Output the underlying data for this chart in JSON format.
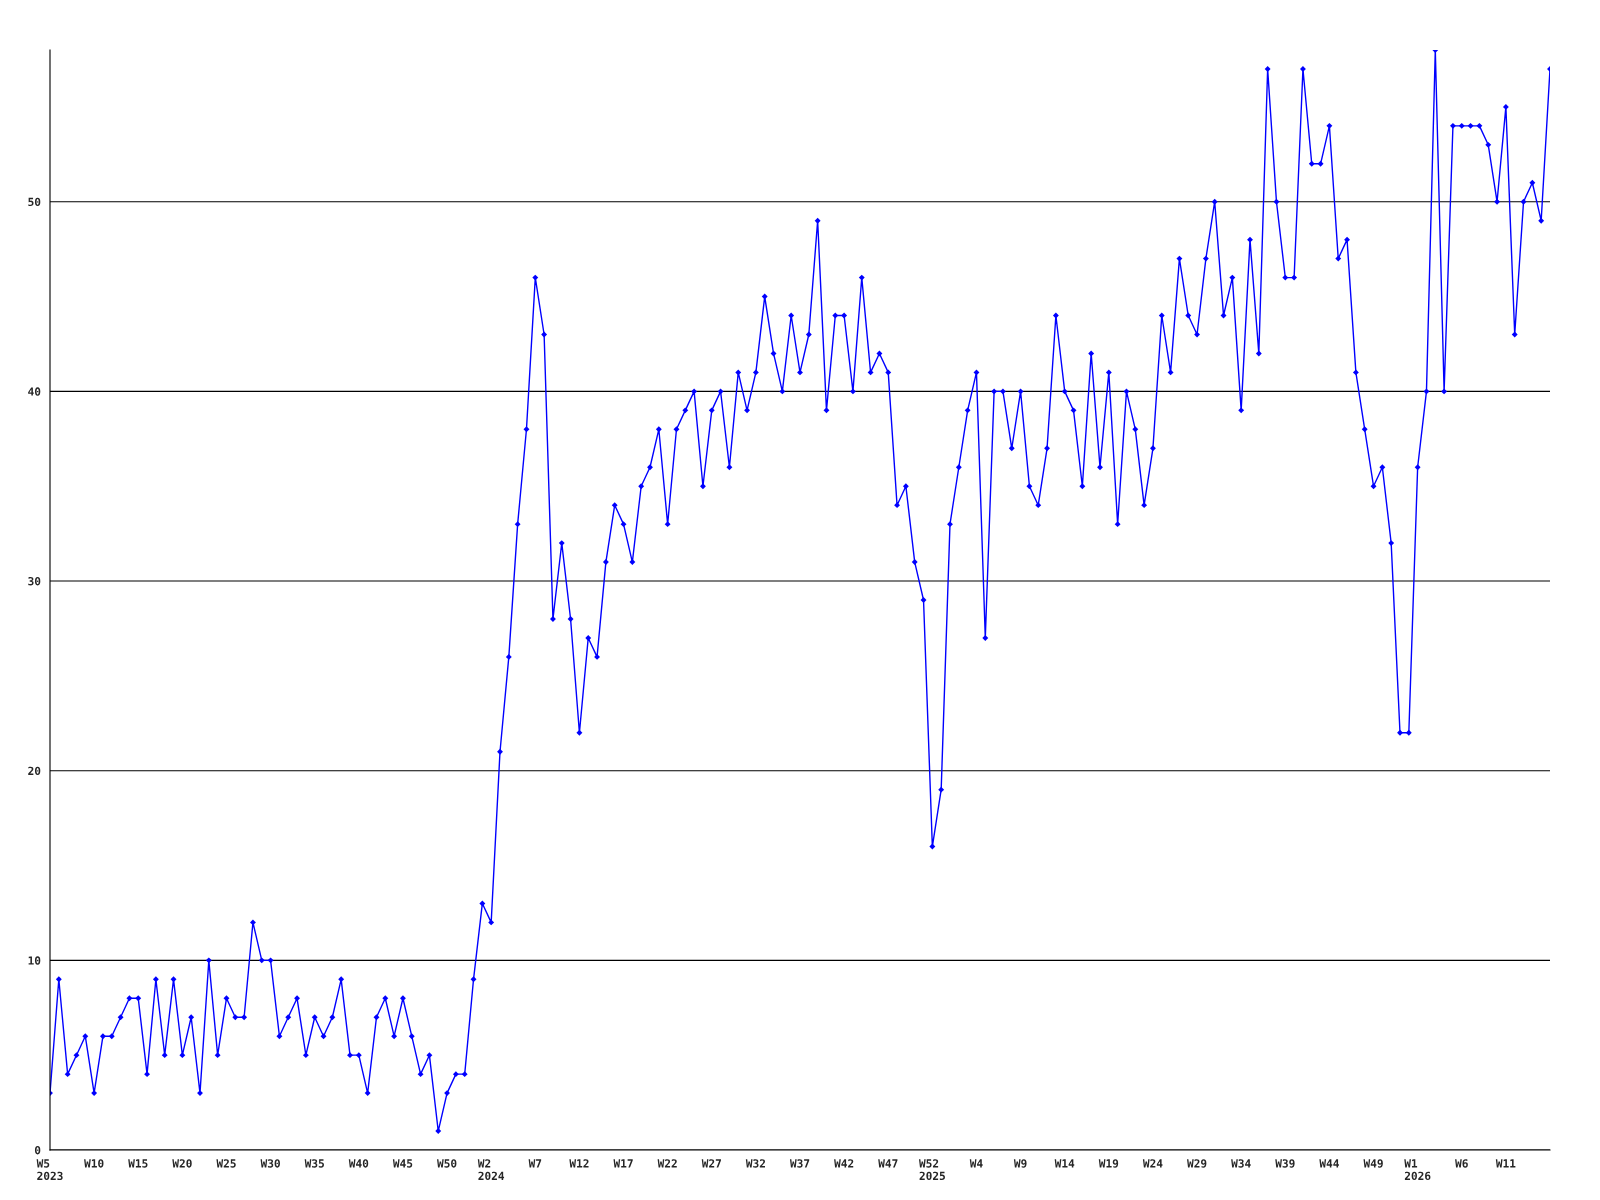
{
  "chart_data": {
    "type": "line",
    "categories": [
      "W5\n2023",
      null,
      null,
      null,
      null,
      "W10",
      null,
      null,
      null,
      null,
      "W15",
      null,
      null,
      null,
      null,
      "W20",
      null,
      null,
      null,
      null,
      "W25",
      null,
      null,
      null,
      null,
      "W30",
      null,
      null,
      null,
      null,
      "W35",
      null,
      null,
      null,
      null,
      "W40",
      null,
      null,
      null,
      null,
      "W45",
      null,
      null,
      null,
      null,
      "W50",
      null,
      null,
      null,
      null,
      "W2\n2024",
      null,
      null,
      null,
      null,
      "W7",
      null,
      null,
      null,
      null,
      "W12",
      null,
      null,
      null,
      null,
      "W17",
      null,
      null,
      null,
      null,
      "W22",
      null,
      null,
      null,
      null,
      "W27",
      null,
      null,
      null,
      null,
      "W32",
      null,
      null,
      null,
      null,
      "W37",
      null,
      null,
      null,
      null,
      "W42",
      null,
      null,
      null,
      null,
      "W47",
      null,
      null,
      null,
      null,
      "W52\n2025",
      null,
      null,
      null,
      null,
      "W4",
      null,
      null,
      null,
      null,
      "W9",
      null,
      null,
      null,
      null,
      "W14",
      null,
      null,
      null,
      null,
      "W19",
      null,
      null,
      null,
      null,
      "W24",
      null,
      null,
      null,
      null,
      "W29",
      null,
      null,
      null,
      null,
      "W34",
      null,
      null,
      null,
      null,
      "W39",
      null,
      null,
      null,
      null,
      "W44",
      null,
      null,
      null,
      null,
      "W49",
      null,
      null,
      null,
      null,
      "W1\n2026",
      null,
      null,
      null,
      null,
      "W6",
      null,
      null,
      null,
      null,
      "W11",
      null,
      null,
      null,
      null,
      null
    ],
    "series": [
      {
        "color": "#0000ff",
        "values": [
          3,
          9,
          4,
          5,
          6,
          3,
          6,
          6,
          7,
          8,
          8,
          4,
          9,
          5,
          9,
          5,
          7,
          3,
          10,
          5,
          8,
          7,
          7,
          12,
          10,
          10,
          6,
          7,
          8,
          5,
          7,
          6,
          7,
          9,
          5,
          5,
          3,
          7,
          8,
          6,
          8,
          6,
          4,
          5,
          1,
          3,
          4,
          4,
          9,
          13,
          12,
          21,
          26,
          33,
          38,
          46,
          43,
          28,
          32,
          28,
          22,
          27,
          26,
          31,
          34,
          33,
          31,
          35,
          36,
          38,
          33,
          38,
          39,
          40,
          35,
          39,
          40,
          36,
          41,
          39,
          41,
          45,
          42,
          40,
          44,
          41,
          43,
          49,
          39,
          44,
          44,
          40,
          46,
          41,
          42,
          41,
          34,
          35,
          31,
          29,
          16,
          19,
          33,
          36,
          39,
          41,
          27,
          40,
          40,
          37,
          40,
          35,
          34,
          37,
          44,
          40,
          39,
          35,
          42,
          36,
          41,
          33,
          40,
          38,
          34,
          37,
          44,
          41,
          47,
          44,
          43,
          47,
          50,
          44,
          46,
          39,
          48,
          42,
          57,
          50,
          46,
          46,
          57,
          52,
          52,
          54,
          47,
          48,
          41,
          38,
          35,
          36,
          32,
          22,
          22,
          36,
          40,
          58,
          40,
          54,
          54,
          54,
          54,
          53,
          50,
          55,
          43,
          50,
          51,
          49,
          57
        ]
      }
    ],
    "ylim": [
      0,
      58
    ],
    "yticks": [
      0,
      10,
      20,
      30,
      40,
      50
    ],
    "grid": "y",
    "marker": "diamond",
    "line_style": "solid"
  }
}
